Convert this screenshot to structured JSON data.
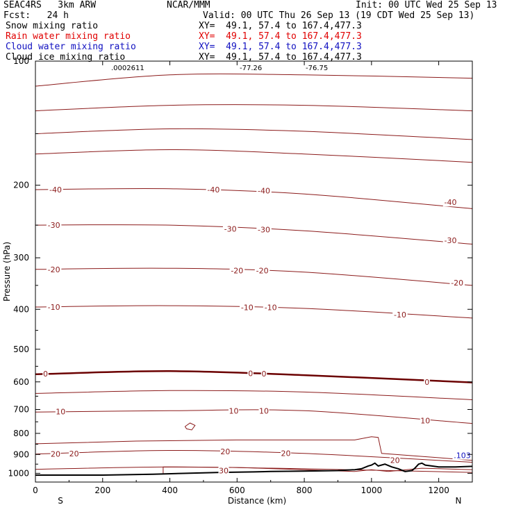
{
  "header": {
    "model": "SEAC4RS   3km ARW",
    "center": "NCAR/MMM",
    "init": "Init: 00 UTC Wed 25 Sep 13",
    "fcst": "Fcst:   24 h",
    "valid": "Valid: 00 UTC Thu 26 Sep 13 (19 CDT Wed 25 Sep 13)",
    "fields": [
      {
        "name": "Snow mixing ratio",
        "xy": "XY=  49.1, 57.4 to 167.4,477.3",
        "color": "#000000"
      },
      {
        "name": "Rain water mixing ratio",
        "xy": "XY=  49.1, 57.4 to 167.4,477.3",
        "color": "#e00000"
      },
      {
        "name": "Cloud water mixing ratio",
        "xy": "XY=  49.1, 57.4 to 167.4,477.3",
        "color": "#1010c0"
      },
      {
        "name": "Cloud ice mixing ratio",
        "xy": "XY=  49.1, 57.4 to 167.4,477.3",
        "color": "#000000"
      }
    ],
    "top_strip": [
      ".0002611",
      "-77.26",
      "-76.75"
    ]
  },
  "chart_data": {
    "type": "line",
    "xlabel": "Distance (km)",
    "ylabel": "Pressure (hPa)",
    "xlim": [
      0,
      1300
    ],
    "ylim": [
      1050,
      100
    ],
    "x_ticks": [
      "0",
      "200",
      "400",
      "600",
      "800",
      "1000",
      "1200"
    ],
    "y_ticks": [
      "100",
      "200",
      "300",
      "400",
      "500",
      "600",
      "700",
      "800",
      "900",
      "1000"
    ],
    "dir_left": "S",
    "dir_right": "N",
    "colors": {
      "isotherm": "#8b1a1a",
      "freezing": "#6b0000",
      "terrain": "#000000",
      "cloud": "#1010c0"
    },
    "isotherms": [
      {
        "value": "",
        "points": [
          [
            0,
            115
          ],
          [
            400,
            108
          ],
          [
            800,
            108
          ],
          [
            1300,
            110
          ]
        ]
      },
      {
        "value": "",
        "points": [
          [
            0,
            132
          ],
          [
            400,
            128
          ],
          [
            800,
            128
          ],
          [
            1300,
            132
          ]
        ]
      },
      {
        "value": "",
        "points": [
          [
            0,
            150
          ],
          [
            400,
            146
          ],
          [
            800,
            148
          ],
          [
            1300,
            155
          ]
        ]
      },
      {
        "value": "",
        "points": [
          [
            0,
            168
          ],
          [
            400,
            164
          ],
          [
            800,
            168
          ],
          [
            1300,
            176
          ]
        ]
      },
      {
        "value": "-40",
        "points": [
          [
            0,
            205
          ],
          [
            400,
            204
          ],
          [
            800,
            210
          ],
          [
            1300,
            228
          ]
        ]
      },
      {
        "value": "-30",
        "points": [
          [
            0,
            250
          ],
          [
            400,
            250
          ],
          [
            800,
            258
          ],
          [
            1300,
            278
          ]
        ]
      },
      {
        "value": "-20",
        "points": [
          [
            0,
            320
          ],
          [
            400,
            318
          ],
          [
            800,
            325
          ],
          [
            1300,
            350
          ]
        ]
      },
      {
        "value": "-10",
        "points": [
          [
            0,
            395
          ],
          [
            400,
            392
          ],
          [
            800,
            398
          ],
          [
            1300,
            420
          ]
        ]
      },
      {
        "value": "0",
        "points": [
          [
            0,
            575
          ],
          [
            400,
            565
          ],
          [
            800,
            578
          ],
          [
            1300,
            602
          ]
        ],
        "bold": true
      },
      {
        "value": "",
        "points": [
          [
            0,
            640
          ],
          [
            400,
            630
          ],
          [
            800,
            635
          ],
          [
            1300,
            663
          ]
        ]
      },
      {
        "value": "10",
        "points": [
          [
            0,
            710
          ],
          [
            400,
            705
          ],
          [
            800,
            705
          ],
          [
            1300,
            757
          ]
        ]
      },
      {
        "value": "20",
        "points": [
          [
            0,
            898
          ],
          [
            400,
            880
          ],
          [
            800,
            895
          ],
          [
            1300,
            940
          ]
        ]
      },
      {
        "value": "",
        "points": [
          [
            0,
            978
          ],
          [
            400,
            965
          ],
          [
            800,
            975
          ],
          [
            1300,
            995
          ]
        ]
      }
    ],
    "labels": [
      {
        "text": "-40",
        "x": 60,
        "p": 205
      },
      {
        "text": "-40",
        "x": 530,
        "p": 205
      },
      {
        "text": "-40",
        "x": 680,
        "p": 206
      },
      {
        "text": "-40",
        "x": 1235,
        "p": 220
      },
      {
        "text": "-30",
        "x": 55,
        "p": 250
      },
      {
        "text": "-30",
        "x": 580,
        "p": 255
      },
      {
        "text": "-30",
        "x": 680,
        "p": 256
      },
      {
        "text": "-30",
        "x": 1235,
        "p": 272
      },
      {
        "text": "-20",
        "x": 55,
        "p": 320
      },
      {
        "text": "-20",
        "x": 600,
        "p": 322
      },
      {
        "text": "-20",
        "x": 675,
        "p": 322
      },
      {
        "text": "-20",
        "x": 1255,
        "p": 345
      },
      {
        "text": "-10",
        "x": 55,
        "p": 395
      },
      {
        "text": "-10",
        "x": 630,
        "p": 396
      },
      {
        "text": "-10",
        "x": 700,
        "p": 396
      },
      {
        "text": "-10",
        "x": 1085,
        "p": 412
      },
      {
        "text": "0",
        "x": 30,
        "p": 573
      },
      {
        "text": "0",
        "x": 640,
        "p": 572
      },
      {
        "text": "0",
        "x": 680,
        "p": 573
      },
      {
        "text": "0",
        "x": 1165,
        "p": 600
      },
      {
        "text": "10",
        "x": 75,
        "p": 708
      },
      {
        "text": "10",
        "x": 590,
        "p": 706
      },
      {
        "text": "10",
        "x": 680,
        "p": 706
      },
      {
        "text": "10",
        "x": 1160,
        "p": 745
      },
      {
        "text": "20",
        "x": 60,
        "p": 898
      },
      {
        "text": "20",
        "x": 115,
        "p": 896
      },
      {
        "text": "20",
        "x": 565,
        "p": 885
      },
      {
        "text": "20",
        "x": 745,
        "p": 893
      },
      {
        "text": "20",
        "x": 1070,
        "p": 930
      },
      {
        "text": "30",
        "x": 560,
        "p": 985
      },
      {
        "text": "H",
        "x": 1260,
        "p": 895
      },
      {
        "text": ".103",
        "x": 1270,
        "p": 905
      }
    ],
    "cloud_loop": [
      [
        445,
        770
      ],
      [
        460,
        755
      ],
      [
        475,
        765
      ],
      [
        465,
        785
      ],
      [
        450,
        780
      ],
      [
        445,
        770
      ]
    ],
    "warm_contour": [
      [
        0,
        848
      ],
      [
        300,
        835
      ],
      [
        600,
        830
      ],
      [
        900,
        830
      ],
      [
        950,
        830
      ],
      [
        1000,
        815
      ],
      [
        1020,
        818
      ],
      [
        1030,
        895
      ],
      [
        1150,
        910
      ],
      [
        1300,
        930
      ]
    ],
    "ridge_contour": [
      [
        380,
        1000
      ],
      [
        380,
        965
      ],
      [
        600,
        968
      ],
      [
        800,
        980
      ],
      [
        950,
        990
      ],
      [
        1000,
        980
      ],
      [
        1050,
        990
      ],
      [
        1150,
        972
      ],
      [
        1300,
        980
      ]
    ],
    "terrain": [
      [
        0,
        1010
      ],
      [
        200,
        1010
      ],
      [
        350,
        1005
      ],
      [
        450,
        1000
      ],
      [
        550,
        995
      ],
      [
        650,
        992
      ],
      [
        700,
        990
      ],
      [
        800,
        988
      ],
      [
        900,
        985
      ],
      [
        950,
        980
      ],
      [
        970,
        975
      ],
      [
        990,
        960
      ],
      [
        1000,
        955
      ],
      [
        1010,
        945
      ],
      [
        1020,
        960
      ],
      [
        1040,
        950
      ],
      [
        1060,
        965
      ],
      [
        1080,
        975
      ],
      [
        1100,
        990
      ],
      [
        1120,
        985
      ],
      [
        1130,
        970
      ],
      [
        1140,
        950
      ],
      [
        1150,
        945
      ],
      [
        1160,
        955
      ],
      [
        1180,
        960
      ],
      [
        1200,
        965
      ],
      [
        1250,
        965
      ],
      [
        1300,
        962
      ]
    ]
  }
}
